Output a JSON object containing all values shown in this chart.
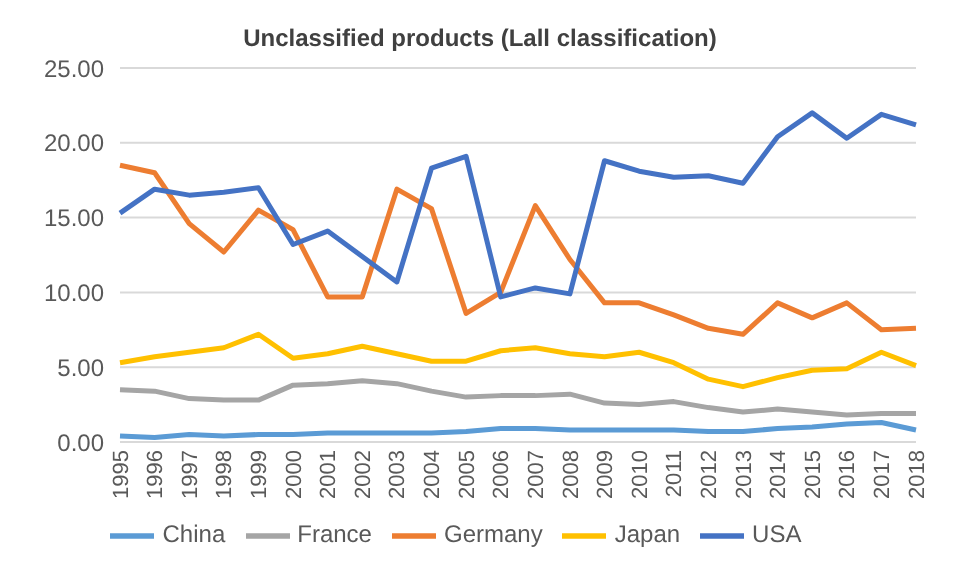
{
  "chart_data": {
    "type": "line",
    "title": "Unclassified products (Lall classification)",
    "categories": [
      "1995",
      "1996",
      "1997",
      "1998",
      "1999",
      "2000",
      "2001",
      "2002",
      "2003",
      "2004",
      "2005",
      "2006",
      "2007",
      "2008",
      "2009",
      "2010",
      "2011",
      "2012",
      "2013",
      "2014",
      "2015",
      "2016",
      "2017",
      "2018"
    ],
    "series": [
      {
        "name": "China",
        "color": "#5b9bd5",
        "values": [
          0.4,
          0.3,
          0.5,
          0.4,
          0.5,
          0.5,
          0.6,
          0.6,
          0.6,
          0.6,
          0.7,
          0.9,
          0.9,
          0.8,
          0.8,
          0.8,
          0.8,
          0.7,
          0.7,
          0.9,
          1.0,
          1.2,
          1.3,
          0.8
        ]
      },
      {
        "name": "Germany",
        "color": "#ed7d31",
        "values": [
          18.5,
          18.0,
          14.6,
          12.7,
          15.5,
          14.2,
          9.7,
          9.7,
          16.9,
          15.6,
          8.6,
          10.0,
          15.8,
          12.2,
          9.3,
          9.3,
          8.5,
          7.6,
          7.2,
          9.3,
          8.3,
          9.3,
          7.5,
          7.6
        ]
      },
      {
        "name": "France",
        "color": "#a5a5a5",
        "values": [
          3.5,
          3.4,
          2.9,
          2.8,
          2.8,
          3.8,
          3.9,
          4.1,
          3.9,
          3.4,
          3.0,
          3.1,
          3.1,
          3.2,
          2.6,
          2.5,
          2.7,
          2.3,
          2.0,
          2.2,
          2.0,
          1.8,
          1.9,
          1.9
        ]
      },
      {
        "name": "Japan",
        "color": "#ffc000",
        "values": [
          5.3,
          5.7,
          6.0,
          6.3,
          7.2,
          5.6,
          5.9,
          6.4,
          5.9,
          5.4,
          5.4,
          6.1,
          6.3,
          5.9,
          5.7,
          6.0,
          5.3,
          4.2,
          3.7,
          4.3,
          4.8,
          4.9,
          6.0,
          5.1
        ]
      },
      {
        "name": "USA",
        "color": "#4472c4",
        "values": [
          15.3,
          16.9,
          16.5,
          16.7,
          17.0,
          13.2,
          14.1,
          12.4,
          10.7,
          18.3,
          19.1,
          9.7,
          10.3,
          9.9,
          18.8,
          18.1,
          17.7,
          17.8,
          17.3,
          20.4,
          22.0,
          20.3,
          21.9,
          21.2
        ]
      }
    ],
    "ylim": [
      0,
      25
    ],
    "yticks": [
      {
        "value": 0,
        "label": "0.00"
      },
      {
        "value": 5,
        "label": "5.00"
      },
      {
        "value": 10,
        "label": "10.00"
      },
      {
        "value": 15,
        "label": "15.00"
      },
      {
        "value": 20,
        "label": "20.00"
      },
      {
        "value": 25,
        "label": "25.00"
      }
    ],
    "grid": "y",
    "legend": "bottom",
    "marker": "none",
    "line_style": "solid"
  }
}
